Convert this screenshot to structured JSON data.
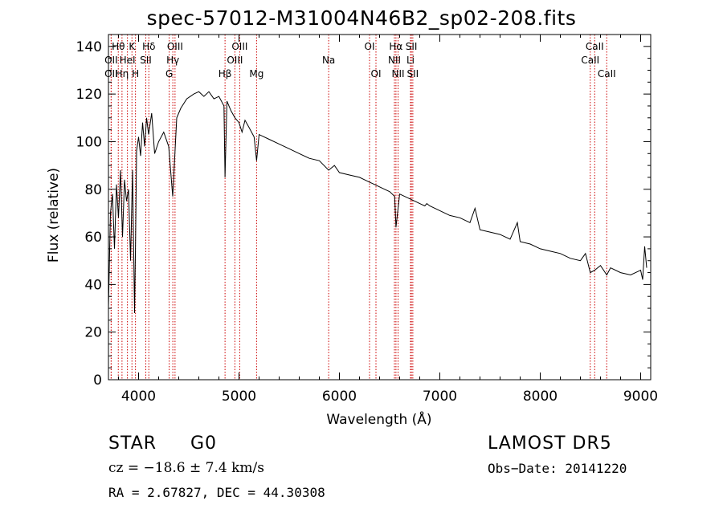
{
  "chart_data": {
    "type": "line",
    "title": "spec-57012-M31004N46B2_sp02-208.fits",
    "xlabel": "Wavelength (Å)",
    "ylabel": "Flux (relative)",
    "xlim": [
      3700,
      9100
    ],
    "ylim": [
      0,
      145
    ],
    "x_ticks": [
      4000,
      5000,
      6000,
      7000,
      8000,
      9000
    ],
    "y_ticks": [
      0,
      20,
      40,
      60,
      80,
      100,
      120,
      140
    ],
    "grid": false,
    "series": [
      {
        "x": [
          3700,
          3720,
          3740,
          3760,
          3780,
          3800,
          3820,
          3840,
          3860,
          3880,
          3900,
          3920,
          3940,
          3960,
          3970,
          3980,
          4000,
          4020,
          4040,
          4060,
          4080,
          4100,
          4130,
          4160,
          4200,
          4250,
          4300,
          4340,
          4380,
          4420,
          4480,
          4550,
          4600,
          4650,
          4700,
          4750,
          4800,
          4850,
          4861,
          4880,
          4920,
          4960,
          5000,
          5030,
          5060,
          5100,
          5150,
          5175,
          5200,
          5300,
          5400,
          5500,
          5600,
          5700,
          5800,
          5893,
          5950,
          6000,
          6100,
          6200,
          6250,
          6300,
          6350,
          6400,
          6450,
          6500,
          6550,
          6563,
          6600,
          6650,
          6700,
          6750,
          6800,
          6850,
          6870,
          6900,
          7000,
          7100,
          7200,
          7300,
          7350,
          7400,
          7500,
          7600,
          7700,
          7772,
          7800,
          7900,
          8000,
          8100,
          8200,
          8300,
          8400,
          8450,
          8498,
          8542,
          8600,
          8662,
          8700,
          8800,
          8900,
          9000,
          9020,
          9040,
          9060
        ],
        "y": [
          30,
          70,
          78,
          55,
          82,
          68,
          88,
          60,
          84,
          75,
          80,
          50,
          88,
          28,
          60,
          96,
          102,
          94,
          108,
          98,
          110,
          103,
          112,
          95,
          100,
          104,
          98,
          77,
          110,
          114,
          118,
          120,
          121,
          119,
          121,
          118,
          119,
          115,
          85,
          117,
          113,
          110,
          108,
          104,
          109,
          106,
          102,
          92,
          103,
          101,
          99,
          97,
          95,
          93,
          92,
          88,
          90,
          87,
          86,
          85,
          84,
          83,
          82,
          81,
          80,
          79,
          77,
          64,
          78,
          77,
          76,
          75,
          74,
          73,
          74,
          73,
          71,
          69,
          68,
          66,
          72,
          63,
          62,
          61,
          59,
          66,
          58,
          57,
          55,
          54,
          53,
          51,
          50,
          53,
          45,
          46,
          48,
          44,
          47,
          45,
          44,
          46,
          42,
          56,
          47
        ]
      }
    ],
    "line_markers": [
      {
        "label": "Hθ",
        "x": 3798,
        "row": 1
      },
      {
        "label": "OII",
        "x": 3727,
        "row": 2
      },
      {
        "label": "OII",
        "x": 3727,
        "row": 3
      },
      {
        "label": "Hη",
        "x": 3835,
        "row": 3
      },
      {
        "label": "HeI",
        "x": 3889,
        "row": 2
      },
      {
        "label": "K",
        "x": 3934,
        "row": 1
      },
      {
        "label": "H",
        "x": 3969,
        "row": 3
      },
      {
        "label": "SII",
        "x": 4072,
        "row": 2
      },
      {
        "label": "Hδ",
        "x": 4102,
        "row": 1
      },
      {
        "label": "OIII",
        "x": 4363,
        "row": 1
      },
      {
        "label": "Hγ",
        "x": 4341,
        "row": 2
      },
      {
        "label": "G",
        "x": 4305,
        "row": 3
      },
      {
        "label": "Hβ",
        "x": 4861,
        "row": 3
      },
      {
        "label": "OIII",
        "x": 5007,
        "row": 1
      },
      {
        "label": "OIII",
        "x": 4959,
        "row": 2
      },
      {
        "label": "Mg",
        "x": 5175,
        "row": 3
      },
      {
        "label": "Na",
        "x": 5893,
        "row": 2
      },
      {
        "label": "OI",
        "x": 6300,
        "row": 1
      },
      {
        "label": "OI",
        "x": 6364,
        "row": 3
      },
      {
        "label": "Hα",
        "x": 6563,
        "row": 1
      },
      {
        "label": "NII",
        "x": 6548,
        "row": 2
      },
      {
        "label": "NII",
        "x": 6584,
        "row": 3
      },
      {
        "label": "SII",
        "x": 6717,
        "row": 1
      },
      {
        "label": "Li",
        "x": 6708,
        "row": 2
      },
      {
        "label": "SII",
        "x": 6731,
        "row": 3
      },
      {
        "label": "CaII",
        "x": 8542,
        "row": 1
      },
      {
        "label": "CaII",
        "x": 8498,
        "row": 2
      },
      {
        "label": "CaII",
        "x": 8662,
        "row": 3
      }
    ]
  },
  "info": {
    "class": "STAR",
    "subclass": "G0",
    "survey": "LAMOST  DR5",
    "velocity": "cz = −18.6 ± 7.4 km/s",
    "obs_date": "Obs−Date: 20141220",
    "coords": "RA =    2.67827, DEC =  44.30308"
  }
}
